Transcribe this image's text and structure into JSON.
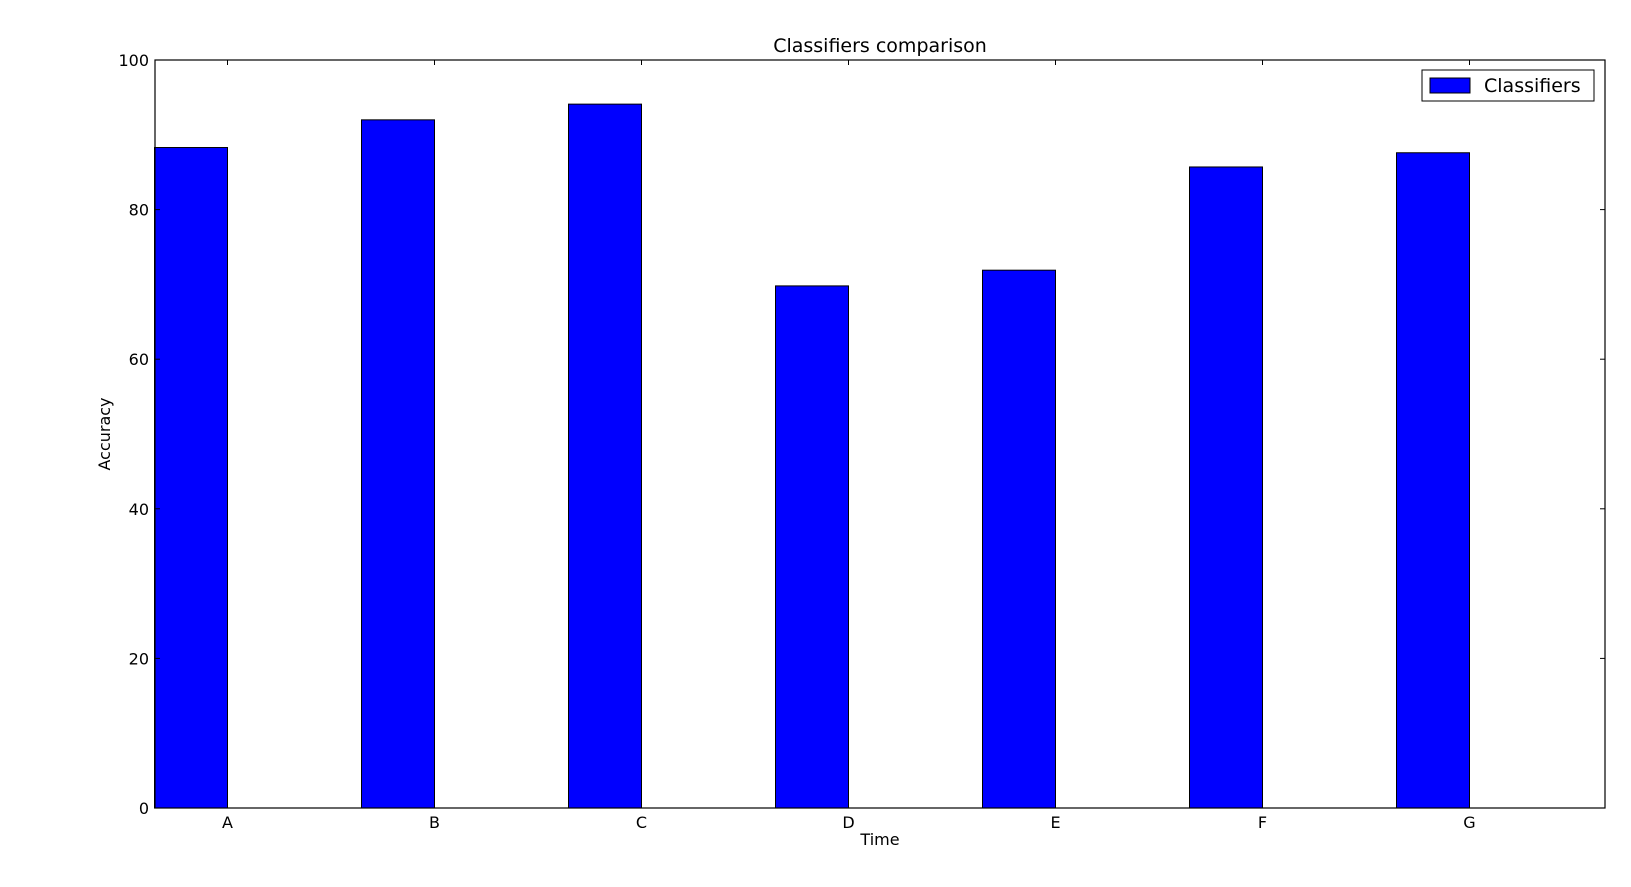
{
  "chart_data": {
    "type": "bar",
    "title": "Classifiers comparison",
    "xlabel": "Time",
    "ylabel": "Accuracy",
    "categories": [
      "A",
      "B",
      "C",
      "D",
      "E",
      "F",
      "G"
    ],
    "series": [
      {
        "name": "Classifiers",
        "values": [
          88.3,
          92.0,
          94.1,
          69.8,
          71.9,
          85.7,
          87.6
        ],
        "color": "#0000ff"
      }
    ],
    "ylim": [
      0,
      100
    ],
    "yticks": [
      0,
      20,
      40,
      60,
      80,
      100
    ],
    "grid": false,
    "legend_position": "top-right"
  }
}
